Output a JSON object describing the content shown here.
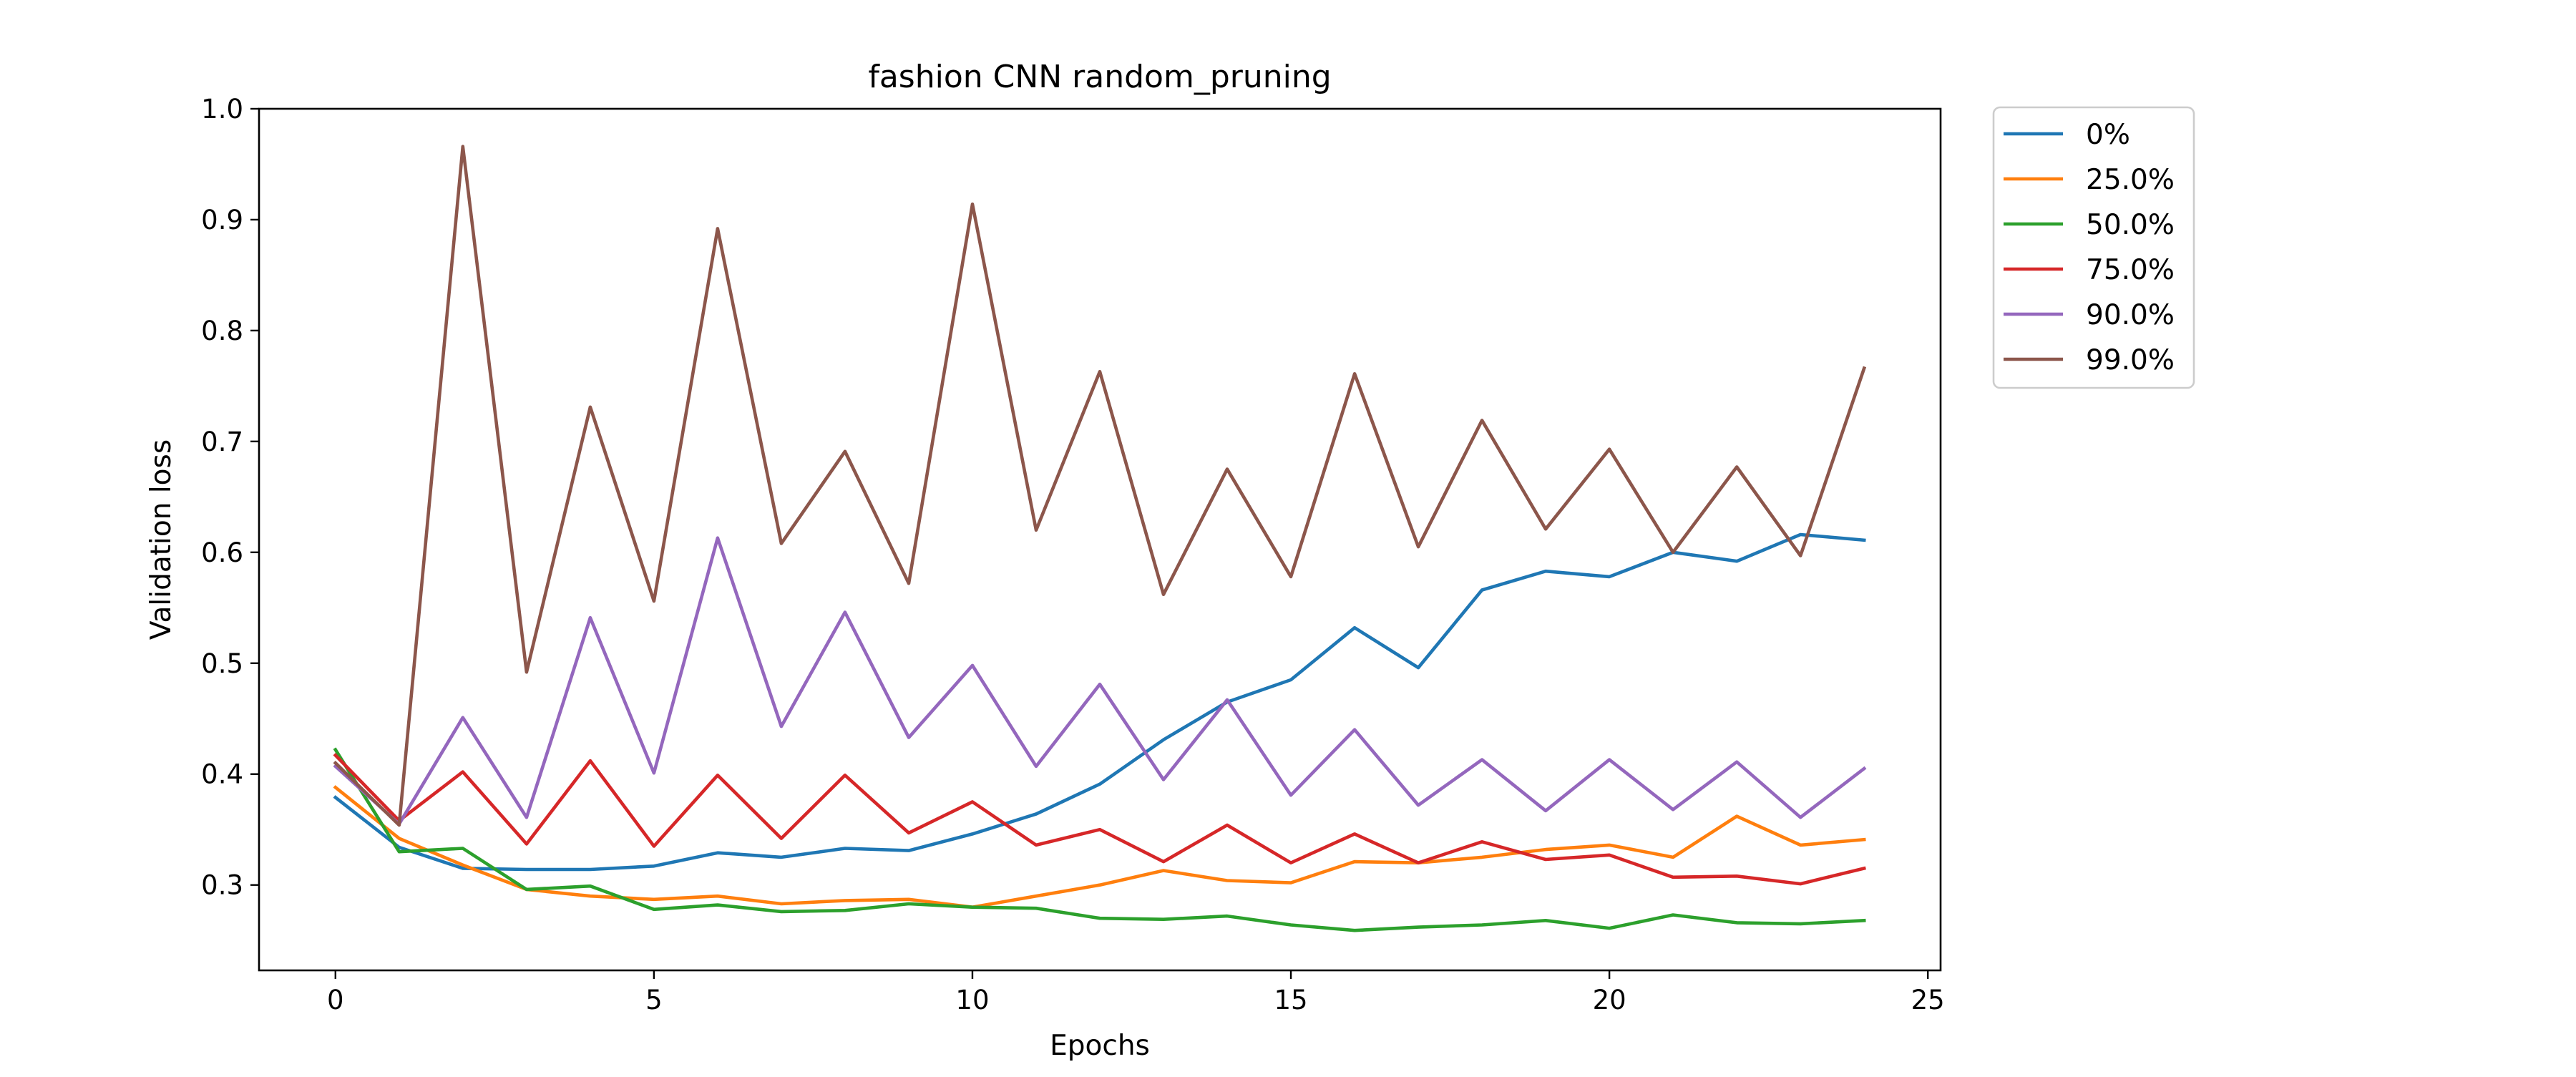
{
  "chart_data": {
    "type": "line",
    "title": "fashion CNN random_pruning",
    "xlabel": "Epochs",
    "ylabel": "Validation loss",
    "xlim": [
      -1.2,
      25.2
    ],
    "ylim": [
      0.223,
      1.0
    ],
    "x_ticks": [
      0,
      5,
      10,
      15,
      20,
      25
    ],
    "y_ticks": [
      0.3,
      0.4,
      0.5,
      0.6,
      0.7,
      0.8,
      0.9,
      1.0
    ],
    "x_tick_labels": [
      "0",
      "5",
      "10",
      "15",
      "20",
      "25"
    ],
    "y_tick_labels": [
      "0.3",
      "0.4",
      "0.5",
      "0.6",
      "0.7",
      "0.8",
      "0.9",
      "1.0"
    ],
    "grid": false,
    "legend_position": "outside-top-right",
    "x": [
      0,
      1,
      2,
      3,
      4,
      5,
      6,
      7,
      8,
      9,
      10,
      11,
      12,
      13,
      14,
      15,
      16,
      17,
      18,
      19,
      20,
      21,
      22,
      23,
      24
    ],
    "series": [
      {
        "name": "0%",
        "color": "#1f77b4",
        "values": [
          0.379,
          0.334,
          0.315,
          0.314,
          0.314,
          0.317,
          0.329,
          0.325,
          0.333,
          0.331,
          0.346,
          0.364,
          0.391,
          0.431,
          0.465,
          0.485,
          0.532,
          0.496,
          0.566,
          0.583,
          0.578,
          0.6,
          0.592,
          0.616,
          0.611
        ]
      },
      {
        "name": "25.0%",
        "color": "#ff7f0e",
        "values": [
          0.388,
          0.342,
          0.318,
          0.296,
          0.29,
          0.287,
          0.29,
          0.283,
          0.286,
          0.287,
          0.28,
          0.29,
          0.3,
          0.313,
          0.304,
          0.302,
          0.321,
          0.32,
          0.325,
          0.332,
          0.336,
          0.325,
          0.362,
          0.336,
          0.341
        ]
      },
      {
        "name": "50.0%",
        "color": "#2ca02c",
        "values": [
          0.422,
          0.33,
          0.333,
          0.296,
          0.299,
          0.278,
          0.282,
          0.276,
          0.277,
          0.283,
          0.28,
          0.279,
          0.27,
          0.269,
          0.272,
          0.264,
          0.259,
          0.262,
          0.264,
          0.268,
          0.261,
          0.273,
          0.266,
          0.265,
          0.268
        ]
      },
      {
        "name": "75.0%",
        "color": "#d62728",
        "values": [
          0.417,
          0.358,
          0.402,
          0.337,
          0.412,
          0.335,
          0.399,
          0.342,
          0.399,
          0.347,
          0.375,
          0.336,
          0.35,
          0.321,
          0.354,
          0.32,
          0.346,
          0.32,
          0.339,
          0.323,
          0.327,
          0.307,
          0.308,
          0.301,
          0.315
        ]
      },
      {
        "name": "90.0%",
        "color": "#9467bd",
        "values": [
          0.407,
          0.355,
          0.451,
          0.361,
          0.541,
          0.401,
          0.613,
          0.443,
          0.546,
          0.433,
          0.498,
          0.407,
          0.481,
          0.395,
          0.467,
          0.381,
          0.44,
          0.372,
          0.413,
          0.367,
          0.413,
          0.368,
          0.411,
          0.361,
          0.405
        ]
      },
      {
        "name": "99.0%",
        "color": "#8c564b",
        "values": [
          0.41,
          0.354,
          0.966,
          0.492,
          0.731,
          0.556,
          0.892,
          0.608,
          0.691,
          0.572,
          0.914,
          0.62,
          0.763,
          0.562,
          0.675,
          0.578,
          0.761,
          0.605,
          0.719,
          0.621,
          0.693,
          0.6,
          0.677,
          0.597,
          0.766
        ]
      }
    ]
  }
}
